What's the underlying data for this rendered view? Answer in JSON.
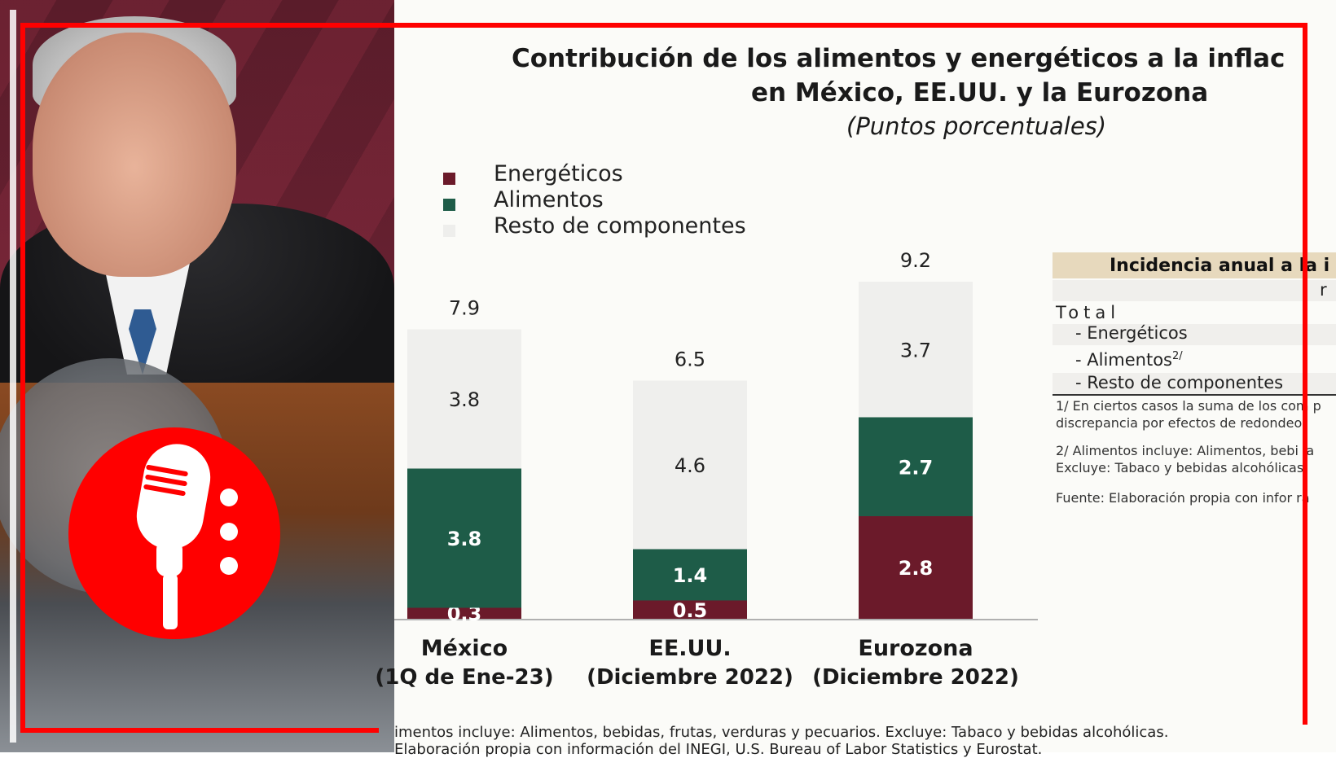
{
  "chart_data": {
    "type": "bar",
    "stacked": true,
    "title": "Contribución de los alimentos y energéticos a la inflac",
    "title_line2": "en México, EE.UU. y la Eurozona",
    "subtitle": "(Puntos porcentuales)",
    "categories": [
      "México",
      "EE.UU.",
      "Eurozona"
    ],
    "category_sublabels": [
      "(1Q de Ene-23)",
      "(Diciembre 2022)",
      "(Diciembre 2022)"
    ],
    "totals": [
      "7.9",
      "6.5",
      "9.2"
    ],
    "series": [
      {
        "name": "Energéticos",
        "values": [
          0.3,
          0.5,
          2.8
        ],
        "labels": [
          "0.3",
          "0.5",
          "2.8"
        ],
        "color": "#6b1a2a"
      },
      {
        "name": "Alimentos",
        "values": [
          3.8,
          1.4,
          2.7
        ],
        "labels": [
          "3.8",
          "1.4",
          "2.7"
        ],
        "color": "#1e5c48"
      },
      {
        "name": "Resto de componentes",
        "values": [
          3.8,
          4.6,
          3.7
        ],
        "labels": [
          "3.8",
          "4.6",
          "3.7"
        ],
        "color": "#efefed"
      }
    ],
    "ylim": [
      0,
      9.2
    ],
    "legend_position": "top-left",
    "grid": false
  },
  "side_table": {
    "header": "Incidencia anual a la i",
    "header_right": "r",
    "total": "Total",
    "rows": [
      "- Energéticos",
      "- Alimentos",
      "- Resto de componentes"
    ],
    "alimentos_sup": "2/",
    "note1_line1": "1/ En ciertos casos la suma de los com p",
    "note1_line2": "discrepancia por efectos de redondeo.",
    "note2_line1": "2/ Alimentos incluye: Alimentos, bebi la",
    "note2_line2": "Excluye: Tabaco y bebidas alcohólicas",
    "source": "Fuente: Elaboración propia con infor ra"
  },
  "footnotes": {
    "line1": "imentos incluye: Alimentos, bebidas, frutas, verduras y pecuarios. Excluye: Tabaco y bebidas alcohólicas.",
    "line2": "Elaboración propia con información del INEGI, U.S. Bureau of Labor Statistics y Eurostat."
  },
  "colors": {
    "frame": "#ff0000",
    "badge": "#ff0000"
  },
  "icons": {
    "podcast": "microphone-icon"
  }
}
